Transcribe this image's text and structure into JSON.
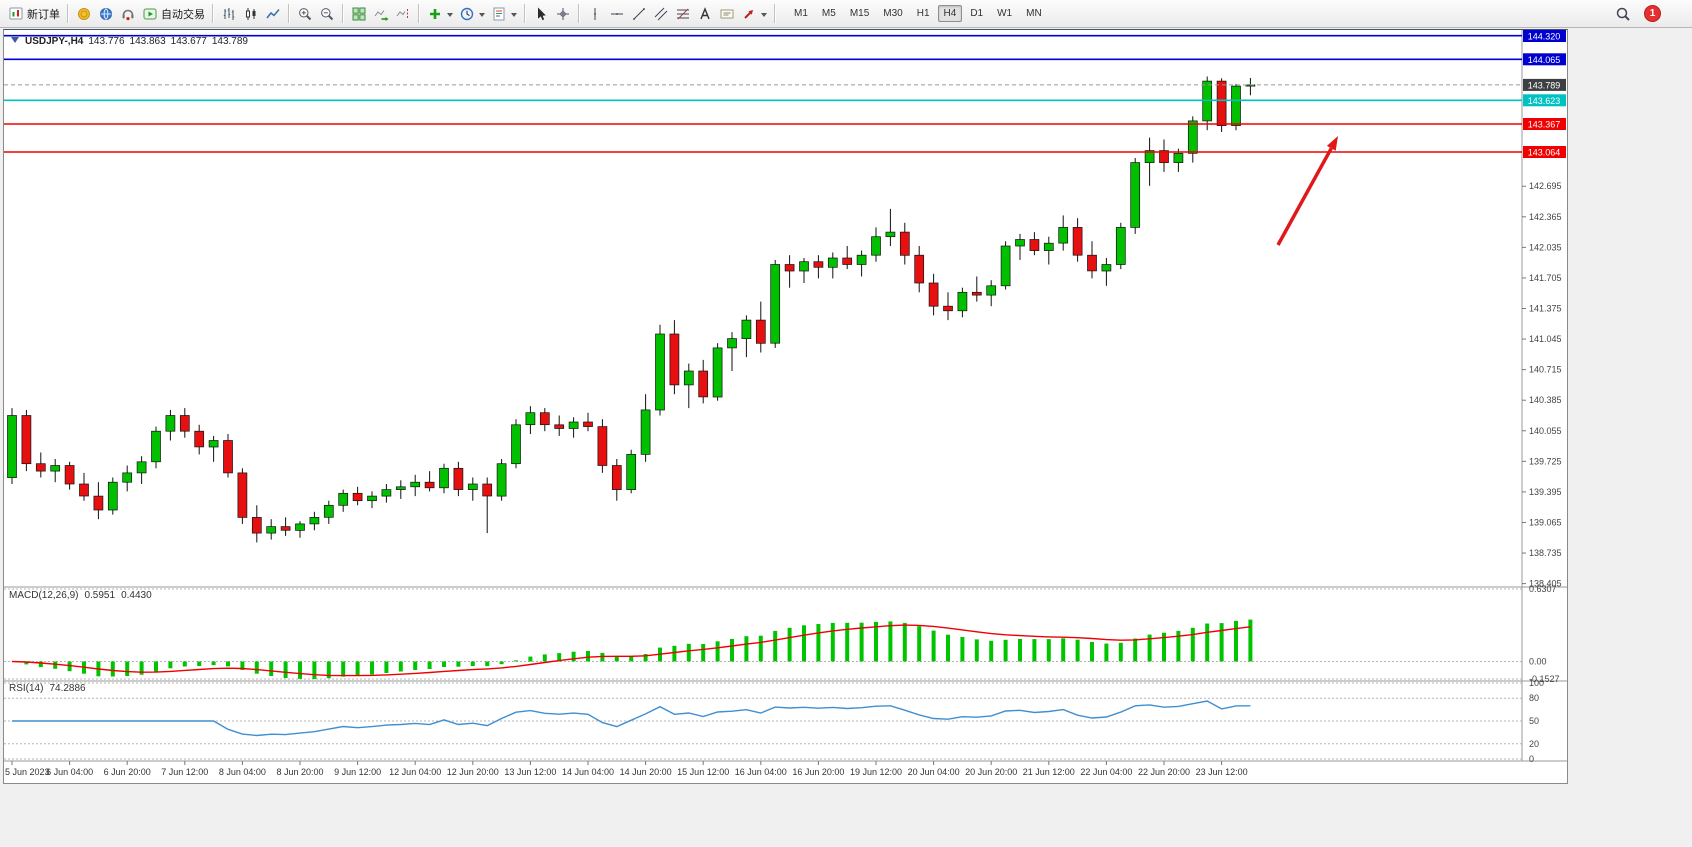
{
  "colors": {
    "bull": "#00c000",
    "bear": "#e61010",
    "wick": "#111111",
    "blue_level": "#0000d0",
    "cyan_level": "#00c2c2",
    "red_level": "#f00000",
    "current_label_bg": "#3c4043",
    "macd_hist": "#00c400",
    "macd_signal": "#f00000",
    "rsi_line": "#3f8fd2",
    "arrow": "#e01818"
  },
  "toolbar": {
    "new_order_label": "新订单",
    "autotrading_label": "自动交易",
    "timeframes": [
      "M1",
      "M5",
      "M15",
      "M30",
      "H1",
      "H4",
      "D1",
      "W1",
      "MN"
    ],
    "active_timeframe": "H4",
    "notification_count": "1"
  },
  "chart": {
    "info": {
      "symbol_period": "USDJPY-,H4",
      "open": "143.776",
      "high": "143.863",
      "low": "143.677",
      "close": "143.789"
    }
  },
  "indicators": {
    "macd": {
      "name": "MACD(12,26,9)",
      "value": "0.5951",
      "signal_value": "0.4430",
      "axis_labels": [
        "0.6307",
        "0.00",
        "-0.1527"
      ],
      "axis_max": 0.6307,
      "axis_min": -0.1527
    },
    "rsi": {
      "name": "RSI(14)",
      "value": "74.2886",
      "levels": [
        100,
        80,
        50,
        20,
        0
      ]
    }
  },
  "chart_data": {
    "type": "candlestick",
    "symbol": "USDJPY-",
    "period": "H4",
    "price_axis": {
      "top_price": 144.36,
      "bottom_price": 138.39,
      "visible_gridline_labels": [
        "142.695",
        "142.365",
        "142.035",
        "141.705",
        "141.375",
        "141.045",
        "140.715",
        "140.385",
        "140.055",
        "139.725",
        "139.395",
        "139.065",
        "138.735",
        "138.405"
      ]
    },
    "levels": [
      {
        "price": 144.32,
        "label": "144.320",
        "type": "blue"
      },
      {
        "price": 144.065,
        "label": "144.065",
        "type": "blue"
      },
      {
        "price": 143.789,
        "label": "143.789",
        "type": "current"
      },
      {
        "price": 143.623,
        "label": "143.623",
        "type": "cyan"
      },
      {
        "price": 143.367,
        "label": "143.367",
        "type": "red"
      },
      {
        "price": 143.064,
        "label": "143.064",
        "type": "red"
      }
    ],
    "time_labels": [
      "5 Jun 2023",
      "6 Jun 04:00",
      "6 Jun 20:00",
      "7 Jun 12:00",
      "8 Jun 04:00",
      "8 Jun 20:00",
      "9 Jun 12:00",
      "12 Jun 04:00",
      "12 Jun 20:00",
      "13 Jun 12:00",
      "14 Jun 04:00",
      "14 Jun 20:00",
      "15 Jun 12:00",
      "16 Jun 04:00",
      "16 Jun 20:00",
      "19 Jun 12:00",
      "20 Jun 04:00",
      "20 Jun 20:00",
      "21 Jun 12:00",
      "22 Jun 04:00",
      "22 Jun 20:00",
      "23 Jun 12:00"
    ],
    "label_every_n_candles": 4,
    "candles": [
      [
        139.55,
        140.3,
        139.48,
        140.22
      ],
      [
        140.22,
        140.28,
        139.62,
        139.7
      ],
      [
        139.7,
        139.82,
        139.55,
        139.62
      ],
      [
        139.62,
        139.75,
        139.5,
        139.68
      ],
      [
        139.68,
        139.72,
        139.42,
        139.48
      ],
      [
        139.48,
        139.6,
        139.3,
        139.35
      ],
      [
        139.35,
        139.5,
        139.1,
        139.2
      ],
      [
        139.2,
        139.55,
        139.15,
        139.5
      ],
      [
        139.5,
        139.68,
        139.4,
        139.6
      ],
      [
        139.6,
        139.78,
        139.48,
        139.72
      ],
      [
        139.72,
        140.1,
        139.65,
        140.05
      ],
      [
        140.05,
        140.28,
        139.95,
        140.22
      ],
      [
        140.22,
        140.3,
        139.98,
        140.05
      ],
      [
        140.05,
        140.12,
        139.8,
        139.88
      ],
      [
        139.88,
        140.0,
        139.72,
        139.95
      ],
      [
        139.95,
        140.02,
        139.55,
        139.6
      ],
      [
        139.6,
        139.65,
        139.05,
        139.12
      ],
      [
        139.12,
        139.25,
        138.85,
        138.95
      ],
      [
        138.95,
        139.1,
        138.88,
        139.02
      ],
      [
        139.02,
        139.12,
        138.92,
        138.98
      ],
      [
        138.98,
        139.08,
        138.9,
        139.05
      ],
      [
        139.05,
        139.18,
        138.98,
        139.12
      ],
      [
        139.12,
        139.3,
        139.05,
        139.25
      ],
      [
        139.25,
        139.42,
        139.18,
        139.38
      ],
      [
        139.38,
        139.45,
        139.25,
        139.3
      ],
      [
        139.3,
        139.4,
        139.22,
        139.35
      ],
      [
        139.35,
        139.48,
        139.28,
        139.42
      ],
      [
        139.42,
        139.52,
        139.32,
        139.45
      ],
      [
        139.45,
        139.58,
        139.35,
        139.5
      ],
      [
        139.5,
        139.62,
        139.4,
        139.44
      ],
      [
        139.44,
        139.7,
        139.38,
        139.65
      ],
      [
        139.65,
        139.72,
        139.35,
        139.42
      ],
      [
        139.42,
        139.55,
        139.3,
        139.48
      ],
      [
        139.48,
        139.55,
        138.95,
        139.35
      ],
      [
        139.35,
        139.75,
        139.3,
        139.7
      ],
      [
        139.7,
        140.18,
        139.65,
        140.12
      ],
      [
        140.12,
        140.32,
        140.02,
        140.25
      ],
      [
        140.25,
        140.3,
        140.05,
        140.12
      ],
      [
        140.12,
        140.22,
        140.0,
        140.08
      ],
      [
        140.08,
        140.2,
        139.98,
        140.15
      ],
      [
        140.15,
        140.25,
        140.05,
        140.1
      ],
      [
        140.1,
        140.18,
        139.6,
        139.68
      ],
      [
        139.68,
        139.75,
        139.3,
        139.42
      ],
      [
        139.42,
        139.85,
        139.38,
        139.8
      ],
      [
        139.8,
        140.45,
        139.72,
        140.28
      ],
      [
        140.28,
        141.2,
        140.22,
        141.1
      ],
      [
        141.1,
        141.25,
        140.45,
        140.55
      ],
      [
        140.55,
        140.78,
        140.3,
        140.7
      ],
      [
        140.7,
        140.82,
        140.35,
        140.42
      ],
      [
        140.42,
        141.0,
        140.38,
        140.95
      ],
      [
        140.95,
        141.12,
        140.7,
        141.05
      ],
      [
        141.05,
        141.3,
        140.85,
        141.25
      ],
      [
        141.25,
        141.45,
        140.9,
        141.0
      ],
      [
        141.0,
        141.9,
        140.95,
        141.85
      ],
      [
        141.85,
        141.95,
        141.6,
        141.78
      ],
      [
        141.78,
        141.92,
        141.65,
        141.88
      ],
      [
        141.88,
        141.95,
        141.7,
        141.82
      ],
      [
        141.82,
        141.98,
        141.7,
        141.92
      ],
      [
        141.92,
        142.05,
        141.8,
        141.85
      ],
      [
        141.85,
        142.0,
        141.72,
        141.95
      ],
      [
        141.95,
        142.25,
        141.88,
        142.15
      ],
      [
        142.15,
        142.45,
        142.05,
        142.2
      ],
      [
        142.2,
        142.3,
        141.85,
        141.95
      ],
      [
        141.95,
        142.05,
        141.55,
        141.65
      ],
      [
        141.65,
        141.75,
        141.3,
        141.4
      ],
      [
        141.4,
        141.55,
        141.25,
        141.35
      ],
      [
        141.35,
        141.6,
        141.28,
        141.55
      ],
      [
        141.55,
        141.72,
        141.45,
        141.52
      ],
      [
        141.52,
        141.68,
        141.4,
        141.62
      ],
      [
        141.62,
        142.1,
        141.58,
        142.05
      ],
      [
        142.05,
        142.18,
        141.9,
        142.12
      ],
      [
        142.12,
        142.2,
        141.95,
        142.0
      ],
      [
        142.0,
        142.15,
        141.85,
        142.08
      ],
      [
        142.08,
        142.38,
        142.0,
        142.25
      ],
      [
        142.25,
        142.35,
        141.88,
        141.95
      ],
      [
        141.95,
        142.1,
        141.7,
        141.78
      ],
      [
        141.78,
        141.92,
        141.62,
        141.85
      ],
      [
        141.85,
        142.3,
        141.8,
        142.25
      ],
      [
        142.25,
        143.0,
        142.18,
        142.95
      ],
      [
        142.95,
        143.22,
        142.7,
        143.08
      ],
      [
        143.08,
        143.2,
        142.85,
        142.95
      ],
      [
        142.95,
        143.1,
        142.85,
        143.05
      ],
      [
        143.05,
        143.45,
        142.95,
        143.4
      ],
      [
        143.4,
        143.88,
        143.3,
        143.83
      ],
      [
        143.83,
        143.86,
        143.28,
        143.35
      ],
      [
        143.35,
        143.8,
        143.3,
        143.776
      ],
      [
        143.776,
        143.863,
        143.677,
        143.789
      ]
    ]
  }
}
